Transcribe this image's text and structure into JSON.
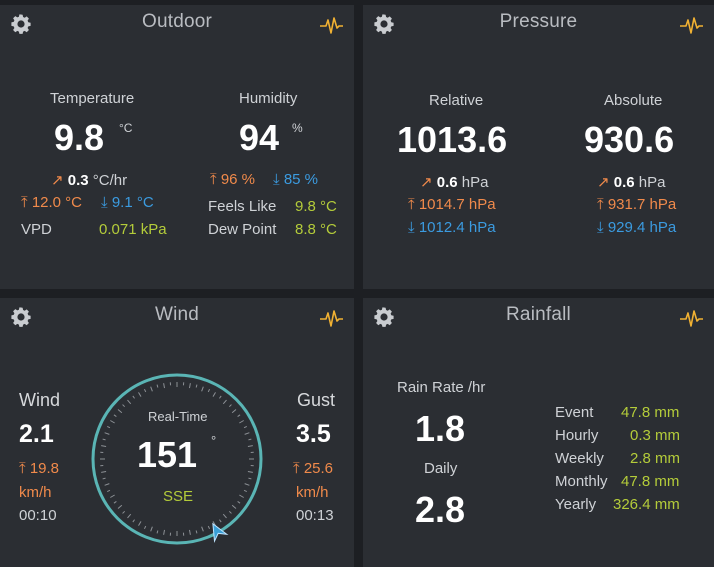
{
  "colors": {
    "panel": "#2b2e33",
    "orange": "#f08a4b",
    "blue": "#3b9be0",
    "green": "#b4cc3a",
    "dial": "#5ab5b5",
    "pulse": "#f2b233"
  },
  "outdoor": {
    "title": "Outdoor",
    "temperature": {
      "label": "Temperature",
      "value": "9.8",
      "unit": "°C",
      "trend_value": "0.3",
      "trend_unit": "°C/hr",
      "high": "12.0 °C",
      "low": "9.1 °C"
    },
    "humidity": {
      "label": "Humidity",
      "value": "94",
      "unit": "%",
      "high": "96 %",
      "low": "85 %"
    },
    "vpd": {
      "label": "VPD",
      "value": "0.071 kPa"
    },
    "feels_like": {
      "label": "Feels Like",
      "value": "9.8 °C"
    },
    "dew_point": {
      "label": "Dew Point",
      "value": "8.8 °C"
    }
  },
  "pressure": {
    "title": "Pressure",
    "relative": {
      "label": "Relative",
      "value": "1013.6",
      "trend_value": "0.6",
      "trend_unit": "hPa",
      "high": "1014.7 hPa",
      "low": "1012.4 hPa"
    },
    "absolute": {
      "label": "Absolute",
      "value": "930.6",
      "trend_value": "0.6",
      "trend_unit": "hPa",
      "high": "931.7 hPa",
      "low": "929.4 hPa"
    }
  },
  "wind": {
    "title": "Wind",
    "speed": {
      "label": "Wind",
      "value": "2.1",
      "max": "19.8",
      "unit": "km/h",
      "time": "00:10"
    },
    "gust": {
      "label": "Gust",
      "value": "3.5",
      "max": "25.6",
      "unit": "km/h",
      "time": "00:13"
    },
    "dial": {
      "label": "Real-Time",
      "value": "151",
      "degree_symbol": "°",
      "direction": "SSE",
      "direction_degrees": 151
    }
  },
  "rainfall": {
    "title": "Rainfall",
    "rate": {
      "label": "Rain Rate /hr",
      "value": "1.8"
    },
    "daily": {
      "label": "Daily",
      "value": "2.8"
    },
    "stats": [
      {
        "label": "Event",
        "value": "47.8 mm"
      },
      {
        "label": "Hourly",
        "value": "0.3 mm"
      },
      {
        "label": "Weekly",
        "value": "2.8 mm"
      },
      {
        "label": "Monthly",
        "value": "47.8 mm"
      },
      {
        "label": "Yearly",
        "value": "326.4 mm"
      }
    ]
  }
}
